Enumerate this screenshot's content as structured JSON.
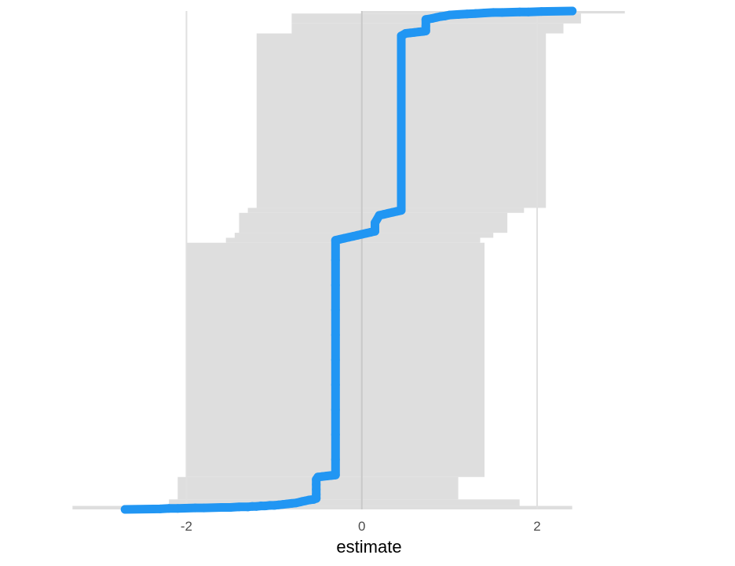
{
  "chart_data": {
    "type": "scatter",
    "title": "",
    "xlabel": "estimate",
    "ylabel": "",
    "xlim": [
      -3.5,
      3.8
    ],
    "ylim": [
      0,
      1
    ],
    "grid": {
      "x_major": true,
      "y": false
    },
    "x_ticks": [
      {
        "value": -2,
        "label": "-2"
      },
      {
        "value": 0,
        "label": "0"
      },
      {
        "value": 2,
        "label": "2"
      }
    ],
    "colors": {
      "point": "#2196F3",
      "interval": "#DEDEDE",
      "grid": "#E0E0E0",
      "zero_line": "#C8C8C8"
    },
    "interval_blocks": [
      {
        "y0": 0.0,
        "y1": 0.007,
        "lo": -3.3,
        "hi": 2.4
      },
      {
        "y0": 0.007,
        "y1": 0.02,
        "lo": -2.2,
        "hi": 1.8
      },
      {
        "y0": 0.02,
        "y1": 0.065,
        "lo": -2.1,
        "hi": 1.1
      },
      {
        "y0": 0.065,
        "y1": 0.535,
        "lo": -2.0,
        "hi": 1.4
      },
      {
        "y0": 0.535,
        "y1": 0.545,
        "lo": -1.55,
        "hi": 1.35
      },
      {
        "y0": 0.545,
        "y1": 0.555,
        "lo": -1.45,
        "hi": 1.5
      },
      {
        "y0": 0.555,
        "y1": 0.595,
        "lo": -1.4,
        "hi": 1.66
      },
      {
        "y0": 0.595,
        "y1": 0.605,
        "lo": -1.3,
        "hi": 1.85
      },
      {
        "y0": 0.605,
        "y1": 0.955,
        "lo": -1.2,
        "hi": 2.1
      },
      {
        "y0": 0.955,
        "y1": 0.975,
        "lo": -0.8,
        "hi": 2.3
      },
      {
        "y0": 0.975,
        "y1": 0.995,
        "lo": -0.8,
        "hi": 2.5
      },
      {
        "y0": 0.995,
        "y1": 1.0,
        "lo": 0.0,
        "hi": 3.0
      }
    ],
    "points": [
      {
        "x": -2.7,
        "y": 0.0
      },
      {
        "x": -2.3,
        "y": 0.001
      },
      {
        "x": -2.2,
        "y": 0.002
      },
      {
        "x": -2.1,
        "y": 0.002
      },
      {
        "x": -1.9,
        "y": 0.003
      },
      {
        "x": -1.8,
        "y": 0.003
      },
      {
        "x": -1.6,
        "y": 0.004
      },
      {
        "x": -1.5,
        "y": 0.004
      },
      {
        "x": -1.4,
        "y": 0.005
      },
      {
        "x": -1.3,
        "y": 0.005
      },
      {
        "x": -1.25,
        "y": 0.006
      },
      {
        "x": -1.2,
        "y": 0.006
      },
      {
        "x": -1.15,
        "y": 0.007
      },
      {
        "x": -1.1,
        "y": 0.007
      },
      {
        "x": -1.05,
        "y": 0.008
      },
      {
        "x": -1.0,
        "y": 0.008
      },
      {
        "x": -0.95,
        "y": 0.009
      },
      {
        "x": -0.9,
        "y": 0.01
      },
      {
        "x": -0.85,
        "y": 0.011
      },
      {
        "x": -0.8,
        "y": 0.012
      },
      {
        "x": -0.75,
        "y": 0.013
      },
      {
        "x": -0.7,
        "y": 0.015
      },
      {
        "x": -0.68,
        "y": 0.016
      },
      {
        "x": -0.65,
        "y": 0.017
      },
      {
        "x": -0.6,
        "y": 0.019
      },
      {
        "x": -0.55,
        "y": 0.02
      },
      {
        "x": -0.52,
        "y": 0.022
      },
      {
        "x": -0.52,
        "y": 0.03
      },
      {
        "x": -0.52,
        "y": 0.04
      },
      {
        "x": -0.52,
        "y": 0.05
      },
      {
        "x": -0.52,
        "y": 0.06
      },
      {
        "x": -0.5,
        "y": 0.065
      },
      {
        "x": -0.45,
        "y": 0.066
      },
      {
        "x": -0.4,
        "y": 0.067
      },
      {
        "x": -0.35,
        "y": 0.068
      },
      {
        "x": -0.3,
        "y": 0.069
      },
      {
        "x": -0.3,
        "y": 0.1
      },
      {
        "x": -0.3,
        "y": 0.15
      },
      {
        "x": -0.3,
        "y": 0.2
      },
      {
        "x": -0.3,
        "y": 0.25
      },
      {
        "x": -0.3,
        "y": 0.3
      },
      {
        "x": -0.3,
        "y": 0.35
      },
      {
        "x": -0.3,
        "y": 0.4
      },
      {
        "x": -0.3,
        "y": 0.45
      },
      {
        "x": -0.3,
        "y": 0.5
      },
      {
        "x": -0.3,
        "y": 0.54
      },
      {
        "x": -0.25,
        "y": 0.542
      },
      {
        "x": -0.2,
        "y": 0.544
      },
      {
        "x": -0.15,
        "y": 0.546
      },
      {
        "x": -0.1,
        "y": 0.548
      },
      {
        "x": -0.05,
        "y": 0.55
      },
      {
        "x": 0.0,
        "y": 0.552
      },
      {
        "x": 0.05,
        "y": 0.554
      },
      {
        "x": 0.1,
        "y": 0.556
      },
      {
        "x": 0.15,
        "y": 0.558
      },
      {
        "x": 0.15,
        "y": 0.575
      },
      {
        "x": 0.2,
        "y": 0.59
      },
      {
        "x": 0.25,
        "y": 0.592
      },
      {
        "x": 0.3,
        "y": 0.594
      },
      {
        "x": 0.35,
        "y": 0.596
      },
      {
        "x": 0.4,
        "y": 0.598
      },
      {
        "x": 0.45,
        "y": 0.6
      },
      {
        "x": 0.45,
        "y": 0.65
      },
      {
        "x": 0.45,
        "y": 0.7
      },
      {
        "x": 0.45,
        "y": 0.75
      },
      {
        "x": 0.45,
        "y": 0.8
      },
      {
        "x": 0.45,
        "y": 0.85
      },
      {
        "x": 0.45,
        "y": 0.9
      },
      {
        "x": 0.45,
        "y": 0.95
      },
      {
        "x": 0.5,
        "y": 0.955
      },
      {
        "x": 0.55,
        "y": 0.956
      },
      {
        "x": 0.6,
        "y": 0.957
      },
      {
        "x": 0.65,
        "y": 0.958
      },
      {
        "x": 0.7,
        "y": 0.959
      },
      {
        "x": 0.73,
        "y": 0.96
      },
      {
        "x": 0.73,
        "y": 0.97
      },
      {
        "x": 0.73,
        "y": 0.983
      },
      {
        "x": 0.8,
        "y": 0.985
      },
      {
        "x": 0.85,
        "y": 0.987
      },
      {
        "x": 0.9,
        "y": 0.989
      },
      {
        "x": 0.95,
        "y": 0.99
      },
      {
        "x": 1.0,
        "y": 0.992
      },
      {
        "x": 1.1,
        "y": 0.993
      },
      {
        "x": 1.2,
        "y": 0.994
      },
      {
        "x": 1.3,
        "y": 0.995
      },
      {
        "x": 1.4,
        "y": 0.996
      },
      {
        "x": 1.5,
        "y": 0.997
      },
      {
        "x": 1.6,
        "y": 0.997
      },
      {
        "x": 1.8,
        "y": 0.998
      },
      {
        "x": 1.9,
        "y": 0.998
      },
      {
        "x": 2.05,
        "y": 0.999
      },
      {
        "x": 2.4,
        "y": 1.0
      }
    ]
  }
}
